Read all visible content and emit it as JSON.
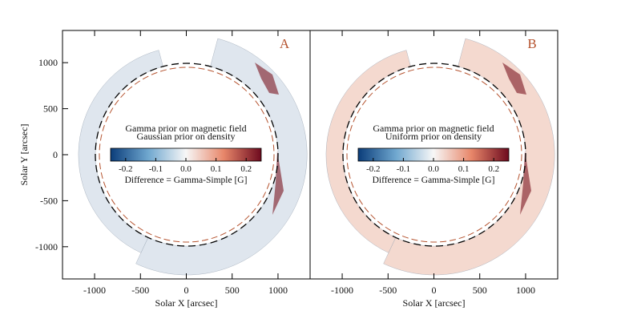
{
  "chart_data": [
    {
      "type": "heatmap",
      "label": "A",
      "annotations": [
        "Gamma prior on magnetic field",
        "Gaussian prior on density"
      ],
      "colorbar_label": "Difference = Gamma-Simple [G]",
      "x_label": "Solar X [arcsec]",
      "y_label": "Solar Y [arcsec]",
      "xlim": [
        -1350,
        1350
      ],
      "ylim": [
        -1350,
        1350
      ],
      "xticks": [
        -1000,
        -500,
        0,
        500,
        1000
      ],
      "yticks": [
        -1000,
        -500,
        0,
        500,
        1000
      ],
      "clim": [
        -0.25,
        0.25
      ],
      "cticks": [
        -0.2,
        -0.1,
        {
          "value": 0,
          "label": "0.0"
        },
        0.1,
        0.2
      ],
      "colormap": [
        "#0b3d7a",
        "#6fa7cf",
        "#f7f7f7",
        "#e8876a",
        "#6d0a1e"
      ],
      "map_color": "#dfe6ee"
    },
    {
      "type": "heatmap",
      "label": "B",
      "annotations": [
        "Gamma prior on magnetic field",
        "Uniform prior on density"
      ],
      "colorbar_label": "Difference = Gamma-Simple [G]",
      "x_label": "Solar X [arcsec]",
      "xlim": [
        -1350,
        1350
      ],
      "ylim": [
        -1350,
        1350
      ],
      "xticks": [
        -1000,
        -500,
        0,
        500,
        1000
      ],
      "clim": [
        -0.25,
        0.25
      ],
      "cticks": [
        -0.2,
        -0.1,
        {
          "value": 0,
          "label": "0.0"
        },
        0.1,
        0.2
      ],
      "colormap": [
        "#0b3d7a",
        "#6fa7cf",
        "#f7f7f7",
        "#e8876a",
        "#6d0a1e"
      ],
      "map_color": "#f4d9cf"
    }
  ]
}
